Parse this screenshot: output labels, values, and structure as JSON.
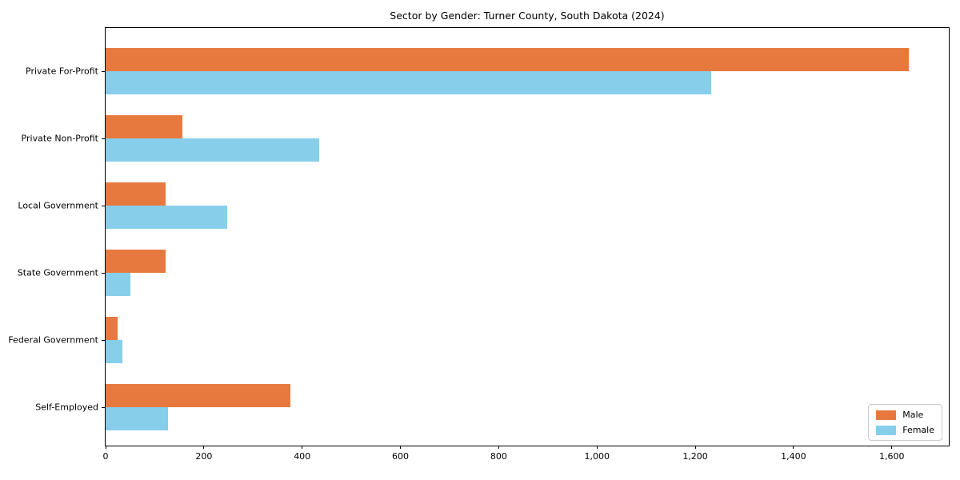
{
  "title": "Sector by Gender: Turner County, South Dakota (2024)",
  "chart_data": {
    "type": "bar",
    "orientation": "horizontal",
    "title": "Sector by Gender: Turner County, South Dakota (2024)",
    "xlabel": "",
    "ylabel": "",
    "categories": [
      "Private For-Profit",
      "Private Non-Profit",
      "Local Government",
      "State Government",
      "Federal Government",
      "Self-Employed"
    ],
    "series": [
      {
        "name": "Male",
        "color": "#E8793E",
        "values": [
          1634,
          156,
          122,
          122,
          24,
          376
        ]
      },
      {
        "name": "Female",
        "color": "#87CEEB",
        "values": [
          1233,
          434,
          247,
          50,
          34,
          127
        ]
      }
    ],
    "xlim": [
      0,
      1716
    ],
    "x_ticks": [
      0,
      200,
      400,
      600,
      800,
      1000,
      1200,
      1400,
      1600
    ],
    "x_tick_labels": [
      "0",
      "200",
      "400",
      "600",
      "800",
      "1,000",
      "1,200",
      "1,400",
      "1,600"
    ],
    "grid": false,
    "legend_position": "lower right",
    "background_color": "#ffffff",
    "spine_color": "#000000"
  }
}
